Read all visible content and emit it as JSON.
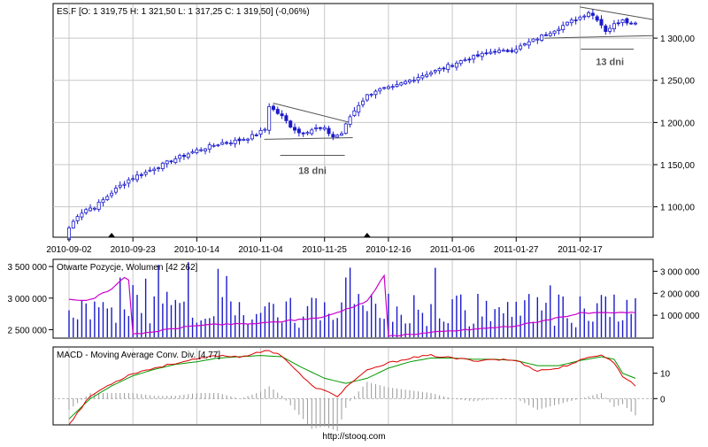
{
  "footer": {
    "url": "http://stooq.com"
  },
  "colors": {
    "candle": "#1a1acc",
    "oi_bar": "#1a1acc",
    "oi_line": "#cc00cc",
    "macd_line": "#dd0000",
    "signal_line": "#009900",
    "histogram": "#999999",
    "annotation": "#555555",
    "marker": "#000000"
  },
  "chart_data": [
    {
      "type": "candlestick",
      "title": "ES.F [O: 1 319,75  H: 1 321,50  L: 1 317,25  C: 1 319,50] (-0,06%)",
      "x_ticks": [
        "2010-09-02",
        "2010-09-23",
        "2010-10-14",
        "2010-11-04",
        "2010-11-25",
        "2010-12-16",
        "2011-01-06",
        "2011-01-27",
        "2011-02-17"
      ],
      "x_tick_index": [
        0,
        15,
        30,
        45,
        60,
        75,
        90,
        105,
        120
      ],
      "x_markers_index": [
        10,
        70
      ],
      "n_sessions": 134,
      "y_ticks": [
        "1 100,00",
        "1 150,00",
        "1 200,00",
        "1 250,00",
        "1 300,00"
      ],
      "y_tick_values": [
        1100,
        1150,
        1200,
        1250,
        1300
      ],
      "ylim": [
        1065,
        1340
      ],
      "close_path": [
        [
          0,
          1075
        ],
        [
          2,
          1090
        ],
        [
          4,
          1097
        ],
        [
          6,
          1100
        ],
        [
          8,
          1108
        ],
        [
          10,
          1117
        ],
        [
          12,
          1125
        ],
        [
          14,
          1132
        ],
        [
          16,
          1137
        ],
        [
          18,
          1141
        ],
        [
          20,
          1146
        ],
        [
          22,
          1150
        ],
        [
          24,
          1155
        ],
        [
          26,
          1159
        ],
        [
          28,
          1163
        ],
        [
          30,
          1167
        ],
        [
          32,
          1170
        ],
        [
          34,
          1173
        ],
        [
          36,
          1176
        ],
        [
          38,
          1177
        ],
        [
          40,
          1179
        ],
        [
          42,
          1182
        ],
        [
          44,
          1186
        ],
        [
          46,
          1192
        ],
        [
          47,
          1220
        ],
        [
          48,
          1215
        ],
        [
          50,
          1207
        ],
        [
          52,
          1196
        ],
        [
          54,
          1188
        ],
        [
          56,
          1190
        ],
        [
          58,
          1193
        ],
        [
          60,
          1192
        ],
        [
          62,
          1183
        ],
        [
          64,
          1187
        ],
        [
          66,
          1207
        ],
        [
          68,
          1221
        ],
        [
          70,
          1232
        ],
        [
          72,
          1238
        ],
        [
          74,
          1240
        ],
        [
          76,
          1241
        ],
        [
          78,
          1246
        ],
        [
          80,
          1250
        ],
        [
          82,
          1254
        ],
        [
          84,
          1258
        ],
        [
          86,
          1261
        ],
        [
          88,
          1265
        ],
        [
          90,
          1269
        ],
        [
          92,
          1273
        ],
        [
          94,
          1276
        ],
        [
          96,
          1279
        ],
        [
          98,
          1282
        ],
        [
          100,
          1285
        ],
        [
          102,
          1284
        ],
        [
          104,
          1286
        ],
        [
          106,
          1290
        ],
        [
          108,
          1295
        ],
        [
          110,
          1300
        ],
        [
          112,
          1305
        ],
        [
          114,
          1310
        ],
        [
          116,
          1315
        ],
        [
          118,
          1320
        ],
        [
          120,
          1325
        ],
        [
          122,
          1331
        ],
        [
          124,
          1323
        ],
        [
          126,
          1309
        ],
        [
          128,
          1316
        ],
        [
          130,
          1323
        ],
        [
          132,
          1317
        ],
        [
          133,
          1319.5
        ]
      ],
      "annotations": [
        {
          "label": "18 dni",
          "start_index": 50,
          "end_index": 66
        },
        {
          "label": "13 dni",
          "start_index": 121,
          "end_index": 133
        }
      ]
    },
    {
      "type": "bar+line",
      "title": "Otwarte Pozycje, Wolumen [42 262]",
      "left_axis_ticks": [
        "2 500 000",
        "3 000 000",
        "3 500 000"
      ],
      "left_axis_values": [
        2500000,
        3000000,
        3500000
      ],
      "left_ylim": [
        2380000,
        3600000
      ],
      "right_axis_ticks": [
        "1 000 000",
        "2 000 000",
        "3 000 000"
      ],
      "right_axis_values": [
        1000000,
        2000000,
        3000000
      ],
      "right_ylim": [
        0,
        3500000
      ],
      "open_interest_path": [
        [
          0,
          2970000
        ],
        [
          5,
          2970000
        ],
        [
          10,
          3150000
        ],
        [
          13,
          3330000
        ],
        [
          14,
          3300000
        ],
        [
          15,
          2420000
        ],
        [
          30,
          2570000
        ],
        [
          45,
          2600000
        ],
        [
          60,
          2700000
        ],
        [
          70,
          2950000
        ],
        [
          74,
          3350000
        ],
        [
          75,
          2400000
        ],
        [
          90,
          2480000
        ],
        [
          105,
          2560000
        ],
        [
          120,
          2760000
        ],
        [
          125,
          2760000
        ],
        [
          133,
          2770000
        ]
      ]
    },
    {
      "type": "line+histogram",
      "title": "MACD - Moving Average Conv. Div. [4,77]",
      "y_ticks": [
        "0",
        "10"
      ],
      "y_tick_values": [
        0,
        10
      ],
      "ylim": [
        -10,
        20
      ],
      "macd_path": [
        [
          0,
          -10
        ],
        [
          5,
          1
        ],
        [
          10,
          6
        ],
        [
          15,
          10
        ],
        [
          20,
          12
        ],
        [
          25,
          14
        ],
        [
          30,
          15.5
        ],
        [
          35,
          17
        ],
        [
          40,
          16.5
        ],
        [
          43,
          17.5
        ],
        [
          47,
          19
        ],
        [
          50,
          17
        ],
        [
          54,
          10
        ],
        [
          57,
          5
        ],
        [
          60,
          3
        ],
        [
          63,
          1
        ],
        [
          66,
          6
        ],
        [
          70,
          11
        ],
        [
          75,
          14
        ],
        [
          80,
          16
        ],
        [
          85,
          17
        ],
        [
          90,
          16
        ],
        [
          95,
          15
        ],
        [
          100,
          15.5
        ],
        [
          105,
          15
        ],
        [
          110,
          11
        ],
        [
          115,
          12
        ],
        [
          120,
          15
        ],
        [
          125,
          17.5
        ],
        [
          128,
          14
        ],
        [
          130,
          9
        ],
        [
          133,
          5
        ]
      ],
      "signal_path": [
        [
          0,
          -8
        ],
        [
          5,
          0
        ],
        [
          10,
          5
        ],
        [
          15,
          9
        ],
        [
          20,
          11.5
        ],
        [
          25,
          13.5
        ],
        [
          30,
          14.5
        ],
        [
          35,
          16
        ],
        [
          40,
          16.5
        ],
        [
          45,
          17
        ],
        [
          50,
          16.5
        ],
        [
          55,
          12
        ],
        [
          60,
          8
        ],
        [
          65,
          6
        ],
        [
          70,
          8
        ],
        [
          75,
          12
        ],
        [
          80,
          14.5
        ],
        [
          85,
          16
        ],
        [
          90,
          16
        ],
        [
          95,
          15.5
        ],
        [
          100,
          15.5
        ],
        [
          105,
          15
        ],
        [
          110,
          13
        ],
        [
          115,
          13
        ],
        [
          120,
          15
        ],
        [
          125,
          16.5
        ],
        [
          128,
          15.5
        ],
        [
          130,
          10
        ],
        [
          133,
          8
        ]
      ]
    }
  ]
}
